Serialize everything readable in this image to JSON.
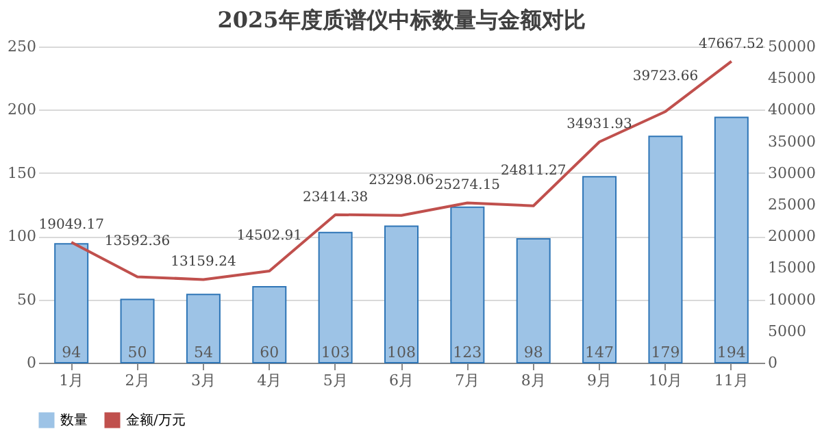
{
  "chart_data": {
    "type": "bar",
    "title": "2025年度质谱仪中标数量与金额对比",
    "categories": [
      "1月",
      "2月",
      "3月",
      "4月",
      "5月",
      "6月",
      "7月",
      "8月",
      "9月",
      "10月",
      "11月"
    ],
    "series": [
      {
        "name": "数量",
        "color": "#9dc3e6",
        "values": [
          94,
          50,
          54,
          60,
          103,
          108,
          123,
          98,
          147,
          179,
          194
        ]
      },
      {
        "name": "金额/万元",
        "type": "line",
        "axis": "y2",
        "color": "#c0504d",
        "values": [
          19049.17,
          13592.36,
          13159.24,
          14502.91,
          23414.38,
          23298.06,
          25274.15,
          24811.27,
          34931.93,
          39723.66,
          47667.52
        ]
      }
    ],
    "ylim": [
      0,
      250
    ],
    "yticks": [
      0,
      50,
      100,
      150,
      200,
      250
    ],
    "y2lim": [
      0,
      50000
    ],
    "y2ticks": [
      0,
      5000,
      10000,
      15000,
      20000,
      25000,
      30000,
      35000,
      40000,
      45000,
      50000
    ],
    "grid": "y",
    "legend": "bottom",
    "data_labels": true,
    "marker": "none"
  }
}
